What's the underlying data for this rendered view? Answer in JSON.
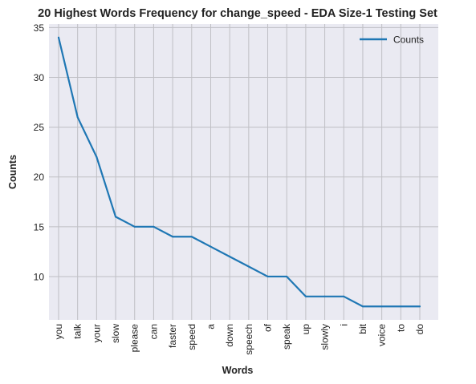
{
  "chart_data": {
    "type": "line",
    "title": "20 Highest Words Frequency for change_speed - EDA Size-1 Testing Set",
    "xlabel": "Words",
    "ylabel": "Counts",
    "categories": [
      "you",
      "talk",
      "your",
      "slow",
      "please",
      "can",
      "faster",
      "speed",
      "a",
      "down",
      "speech",
      "of",
      "speak",
      "up",
      "slowly",
      "i",
      "bit",
      "voice",
      "to",
      "do"
    ],
    "series": [
      {
        "name": "Counts",
        "values": [
          34,
          26,
          22,
          16,
          15,
          15,
          14,
          14,
          13,
          12,
          11,
          10,
          10,
          8,
          8,
          8,
          7,
          7,
          7,
          7
        ],
        "color": "#1f77b4"
      }
    ],
    "yticks": [
      10,
      15,
      20,
      25,
      30,
      35
    ],
    "ylim": [
      5.65,
      35.35
    ],
    "grid": true,
    "legend_position": "top-right",
    "plot_background": "#eaeaf2",
    "grid_color": "#bfbfc4"
  }
}
